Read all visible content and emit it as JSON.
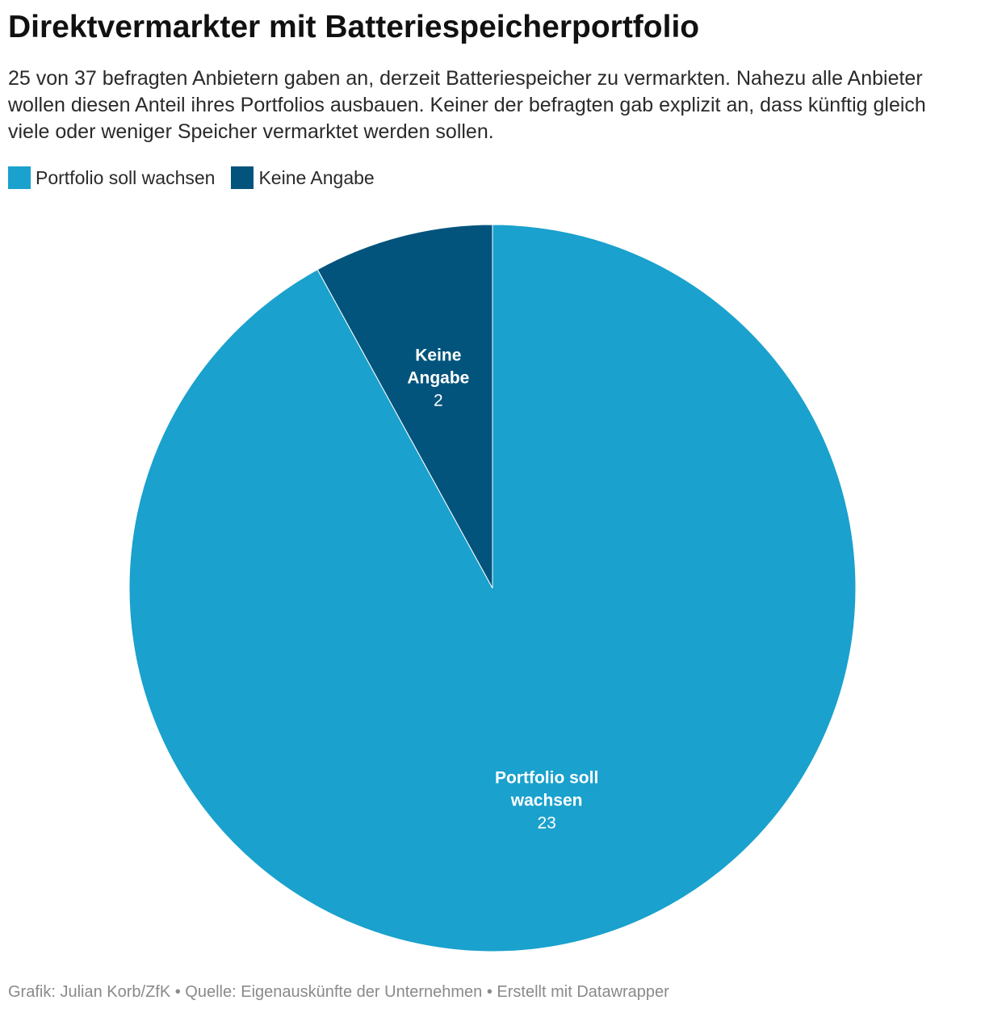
{
  "header": {
    "title": "Direktvermarkter mit Batteriespeicherportfolio",
    "subtitle": "25 von 37 befragten Anbietern gaben an, derzeit Batteriespeicher zu vermarkten. Nahezu alle Anbieter wollen diesen Anteil ihres Portfolios ausbauen. Keiner der befragten gab explizit an, dass künftig gleich viele oder weniger Speicher vermarktet werden sollen."
  },
  "legend": [
    {
      "label": "Portfolio soll wachsen",
      "color": "#1aa1cd"
    },
    {
      "label": "Keine Angabe",
      "color": "#02547c"
    }
  ],
  "chart_data": {
    "type": "pie",
    "slices": [
      {
        "label": "Portfolio soll wachsen",
        "label_lines": [
          "Portfolio soll",
          "wachsen"
        ],
        "value": 23,
        "color": "#1aa1cd"
      },
      {
        "label": "Keine Angabe",
        "label_lines": [
          "Keine",
          "Angabe"
        ],
        "value": 2,
        "color": "#02547c"
      }
    ],
    "start": "top",
    "direction": "clockwise"
  },
  "footer": {
    "text": "Grafik: Julian Korb/ZfK • Quelle: Eigenauskünfte der Unternehmen • Erstellt mit Datawrapper"
  }
}
